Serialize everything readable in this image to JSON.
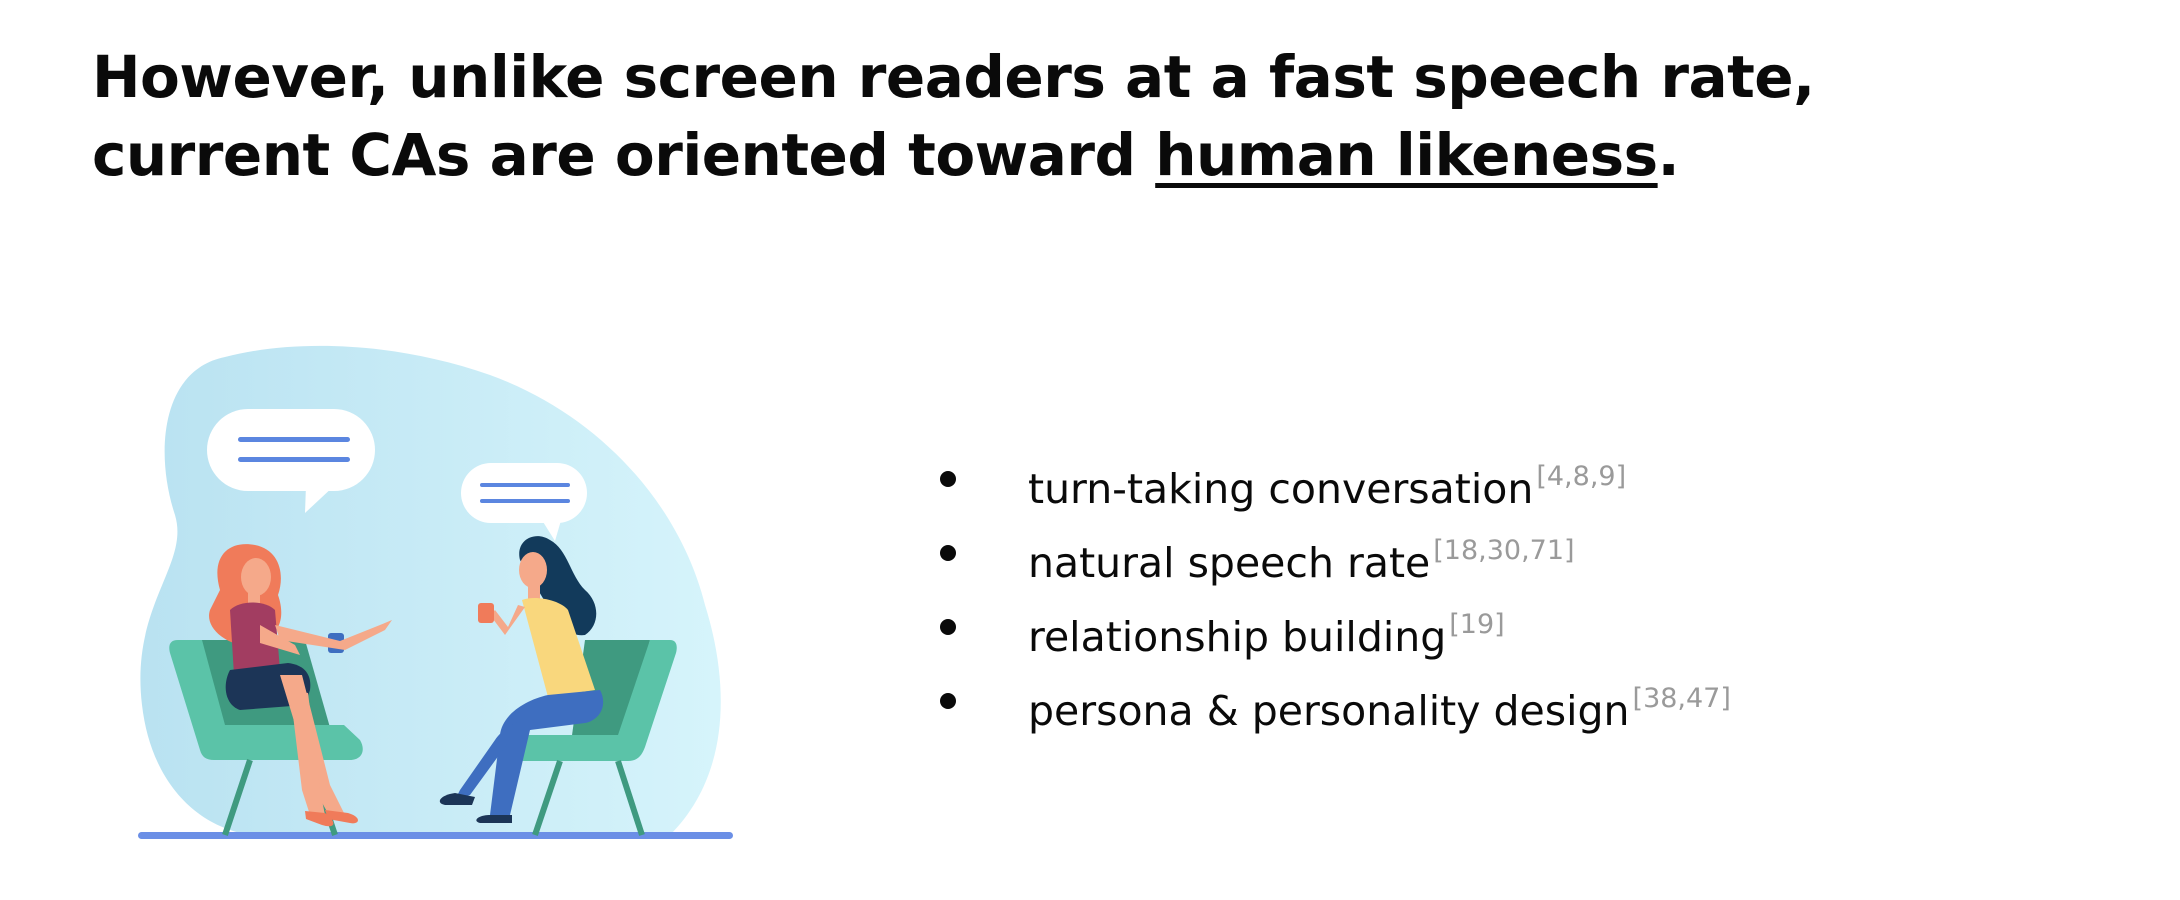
{
  "title": {
    "line1": "However, unlike screen readers at a fast speech rate,",
    "line2_prefix": "current CAs are oriented toward ",
    "line2_emphasis": "human likeness",
    "line2_suffix": "."
  },
  "bullets": [
    {
      "text": "turn-taking conversation",
      "citation": "[4,8,9]"
    },
    {
      "text": "natural speech rate",
      "citation": "[18,30,71]"
    },
    {
      "text": "relationship building",
      "citation": "[19]"
    },
    {
      "text": "persona & personality design",
      "citation": "[38,47]"
    }
  ],
  "colors": {
    "blob_light": "#d3f1f9",
    "blob_dark": "#b9e2f1",
    "chair": "#5bc3a8",
    "chair_dark": "#3f9a80",
    "floor": "#6b8fe6",
    "bubble_lines": "#5b86e0"
  }
}
